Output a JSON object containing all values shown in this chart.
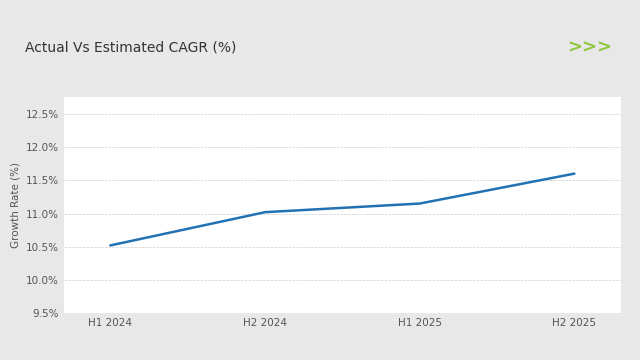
{
  "title": "Actual Vs Estimated CAGR (%)",
  "ylabel": "Growth Rate (%)",
  "x_labels": [
    "H1 2024",
    "H2 2024",
    "H1 2025",
    "H2 2025"
  ],
  "x_values": [
    0,
    1,
    2,
    3
  ],
  "y_values": [
    10.52,
    11.02,
    11.15,
    11.6
  ],
  "ylim": [
    9.5,
    12.75
  ],
  "yticks": [
    9.5,
    10.0,
    10.5,
    11.0,
    11.5,
    12.0,
    12.5
  ],
  "ytick_labels": [
    "9.5%",
    "10.0%",
    "10.5%",
    "11.0%",
    "11.5%",
    "12.0%",
    "12.5%"
  ],
  "line_color": "#2271b3",
  "line_width": 1.8,
  "bg_color": "#e8e8e8",
  "plot_bg_color": "#ffffff",
  "title_fontsize": 10,
  "tick_fontsize": 7.5,
  "ylabel_fontsize": 7.5,
  "green_bar_color": "#8dc63f",
  "arrow_color": "#8dc63f",
  "chevron_text": ">>>",
  "chevron_fontsize": 13
}
